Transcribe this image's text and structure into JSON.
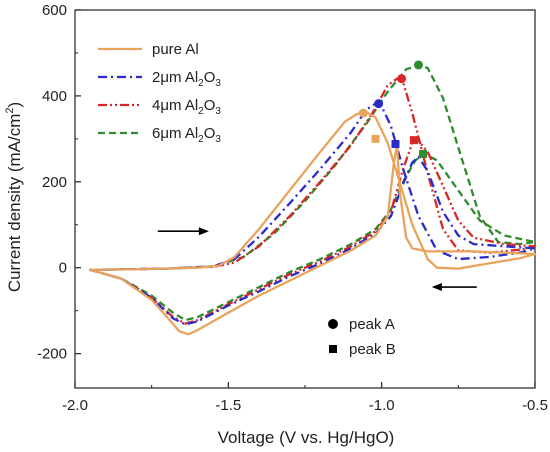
{
  "chart_data": {
    "type": "line",
    "xlabel": "Voltage (V vs. Hg/HgO)",
    "ylabel": "Current density (mA/cm²)",
    "ylabel_main": "Current density (mA/cm",
    "ylabel_sup": "2",
    "ylabel_close": ")",
    "xlim": [
      -2.0,
      -0.5
    ],
    "ylim": [
      -280,
      600
    ],
    "xticks": [
      -2.0,
      -1.5,
      -1.0,
      -0.5
    ],
    "xtick_labels": [
      "-2.0",
      "-1.5",
      "-1.0",
      "-0.5"
    ],
    "yticks": [
      -200,
      0,
      200,
      400,
      600
    ],
    "ytick_labels": [
      "-200",
      "0",
      "200",
      "400",
      "600"
    ],
    "grid": false,
    "legend_position": "top-left",
    "series": [
      {
        "name": "pure Al",
        "label_main": "pure Al",
        "label_sub": "",
        "label_tail": "",
        "color": "#E8A45C",
        "dash": "solid",
        "points": [
          [
            -1.95,
            -5
          ],
          [
            -1.85,
            -25
          ],
          [
            -1.75,
            -75
          ],
          [
            -1.7,
            -115
          ],
          [
            -1.66,
            -148
          ],
          [
            -1.63,
            -155
          ],
          [
            -1.6,
            -145
          ],
          [
            -1.5,
            -105
          ],
          [
            -1.4,
            -65
          ],
          [
            -1.3,
            -30
          ],
          [
            -1.2,
            5
          ],
          [
            -1.1,
            40
          ],
          [
            -1.02,
            75
          ],
          [
            -0.98,
            120
          ],
          [
            -0.96,
            245
          ],
          [
            -0.95,
            285
          ],
          [
            -0.94,
            170
          ],
          [
            -0.92,
            70
          ],
          [
            -0.9,
            45
          ],
          [
            -0.85,
            38
          ],
          [
            -0.7,
            38
          ],
          [
            -0.6,
            35
          ],
          [
            -0.5,
            32
          ],
          [
            -0.55,
            22
          ],
          [
            -0.65,
            10
          ],
          [
            -0.75,
            -2
          ],
          [
            -0.82,
            0
          ],
          [
            -0.85,
            20
          ],
          [
            -0.9,
            100
          ],
          [
            -0.95,
            220
          ],
          [
            -0.98,
            290
          ],
          [
            -1.0,
            320
          ],
          [
            -1.02,
            350
          ],
          [
            -1.05,
            362
          ],
          [
            -1.08,
            358
          ],
          [
            -1.12,
            340
          ],
          [
            -1.2,
            270
          ],
          [
            -1.3,
            180
          ],
          [
            -1.4,
            90
          ],
          [
            -1.48,
            25
          ],
          [
            -1.53,
            5
          ],
          [
            -1.6,
            0
          ],
          [
            -1.75,
            -3
          ],
          [
            -1.95,
            -5
          ]
        ]
      },
      {
        "name": "2μm Al2O3",
        "label_main": "2μm Al",
        "label_sub": "2",
        "label_tail": "O",
        "label_sub2": "3",
        "color": "#2B2BCC",
        "dash": "dashdot",
        "points": [
          [
            -1.95,
            -5
          ],
          [
            -1.85,
            -25
          ],
          [
            -1.75,
            -70
          ],
          [
            -1.68,
            -118
          ],
          [
            -1.64,
            -132
          ],
          [
            -1.6,
            -125
          ],
          [
            -1.5,
            -88
          ],
          [
            -1.4,
            -55
          ],
          [
            -1.3,
            -20
          ],
          [
            -1.2,
            10
          ],
          [
            -1.1,
            45
          ],
          [
            -1.02,
            80
          ],
          [
            -0.97,
            120
          ],
          [
            -0.93,
            195
          ],
          [
            -0.9,
            245
          ],
          [
            -0.88,
            258
          ],
          [
            -0.85,
            225
          ],
          [
            -0.8,
            130
          ],
          [
            -0.75,
            75
          ],
          [
            -0.7,
            55
          ],
          [
            -0.6,
            50
          ],
          [
            -0.5,
            45
          ],
          [
            -0.55,
            35
          ],
          [
            -0.65,
            25
          ],
          [
            -0.75,
            20
          ],
          [
            -0.82,
            40
          ],
          [
            -0.88,
            120
          ],
          [
            -0.93,
            230
          ],
          [
            -0.97,
            330
          ],
          [
            -1.0,
            375
          ],
          [
            -1.02,
            382
          ],
          [
            -1.05,
            368
          ],
          [
            -1.1,
            315
          ],
          [
            -1.2,
            230
          ],
          [
            -1.3,
            150
          ],
          [
            -1.4,
            72
          ],
          [
            -1.48,
            20
          ],
          [
            -1.55,
            3
          ],
          [
            -1.7,
            -2
          ],
          [
            -1.95,
            -5
          ]
        ]
      },
      {
        "name": "4μm Al2O3",
        "label_main": "4μm Al",
        "label_sub": "2",
        "label_tail": "O",
        "label_sub2": "3",
        "color": "#D62828",
        "dash": "dashdotdot",
        "points": [
          [
            -1.95,
            -5
          ],
          [
            -1.85,
            -25
          ],
          [
            -1.75,
            -70
          ],
          [
            -1.68,
            -115
          ],
          [
            -1.64,
            -130
          ],
          [
            -1.6,
            -122
          ],
          [
            -1.5,
            -85
          ],
          [
            -1.4,
            -50
          ],
          [
            -1.3,
            -15
          ],
          [
            -1.2,
            15
          ],
          [
            -1.1,
            50
          ],
          [
            -1.02,
            85
          ],
          [
            -0.97,
            130
          ],
          [
            -0.93,
            230
          ],
          [
            -0.9,
            290
          ],
          [
            -0.88,
            295
          ],
          [
            -0.85,
            270
          ],
          [
            -0.8,
            190
          ],
          [
            -0.75,
            110
          ],
          [
            -0.7,
            70
          ],
          [
            -0.6,
            55
          ],
          [
            -0.5,
            50
          ],
          [
            -0.55,
            42
          ],
          [
            -0.65,
            35
          ],
          [
            -0.75,
            40
          ],
          [
            -0.8,
            90
          ],
          [
            -0.85,
            220
          ],
          [
            -0.9,
            360
          ],
          [
            -0.93,
            432
          ],
          [
            -0.95,
            440
          ],
          [
            -0.98,
            425
          ],
          [
            -1.03,
            360
          ],
          [
            -1.1,
            285
          ],
          [
            -1.2,
            200
          ],
          [
            -1.3,
            120
          ],
          [
            -1.4,
            50
          ],
          [
            -1.48,
            12
          ],
          [
            -1.55,
            2
          ],
          [
            -1.7,
            -2
          ],
          [
            -1.95,
            -5
          ]
        ]
      },
      {
        "name": "6μm Al2O3",
        "label_main": "6μm Al",
        "label_sub": "2",
        "label_tail": "O",
        "label_sub2": "3",
        "color": "#2E8B2E",
        "dash": "dashed",
        "points": [
          [
            -1.95,
            -5
          ],
          [
            -1.85,
            -25
          ],
          [
            -1.75,
            -65
          ],
          [
            -1.68,
            -105
          ],
          [
            -1.64,
            -122
          ],
          [
            -1.6,
            -115
          ],
          [
            -1.5,
            -80
          ],
          [
            -1.4,
            -45
          ],
          [
            -1.3,
            -10
          ],
          [
            -1.2,
            20
          ],
          [
            -1.1,
            55
          ],
          [
            -1.02,
            90
          ],
          [
            -0.97,
            135
          ],
          [
            -0.93,
            200
          ],
          [
            -0.89,
            250
          ],
          [
            -0.86,
            265
          ],
          [
            -0.82,
            250
          ],
          [
            -0.75,
            180
          ],
          [
            -0.68,
            110
          ],
          [
            -0.6,
            75
          ],
          [
            -0.5,
            60
          ],
          [
            -0.55,
            55
          ],
          [
            -0.62,
            60
          ],
          [
            -0.68,
            120
          ],
          [
            -0.75,
            280
          ],
          [
            -0.8,
            395
          ],
          [
            -0.85,
            465
          ],
          [
            -0.88,
            472
          ],
          [
            -0.92,
            462
          ],
          [
            -0.98,
            410
          ],
          [
            -1.05,
            335
          ],
          [
            -1.15,
            240
          ],
          [
            -1.25,
            155
          ],
          [
            -1.35,
            80
          ],
          [
            -1.45,
            25
          ],
          [
            -1.55,
            3
          ],
          [
            -1.7,
            -2
          ],
          [
            -1.95,
            -5
          ]
        ]
      }
    ],
    "peak_a": [
      {
        "series": "pure Al",
        "x": -1.06,
        "y": 360
      },
      {
        "series": "2μm Al2O3",
        "x": -1.01,
        "y": 382
      },
      {
        "series": "4μm Al2O3",
        "x": -0.935,
        "y": 440
      },
      {
        "series": "6μm Al2O3",
        "x": -0.88,
        "y": 472
      }
    ],
    "peak_b": [
      {
        "series": "pure Al",
        "x": -1.02,
        "y": 300
      },
      {
        "series": "2μm Al2O3",
        "x": -0.955,
        "y": 288
      },
      {
        "series": "4μm Al2O3",
        "x": -0.895,
        "y": 297
      },
      {
        "series": "6μm Al2O3",
        "x": -0.865,
        "y": 265
      }
    ],
    "marker_legend": {
      "peak_a": "peak A",
      "peak_b": "peak B"
    },
    "arrows": [
      {
        "direction": "right",
        "x_from": -1.73,
        "x_to": -1.57,
        "y": 85
      },
      {
        "direction": "left",
        "x_from": -0.69,
        "x_to": -0.83,
        "y": -45
      }
    ]
  }
}
